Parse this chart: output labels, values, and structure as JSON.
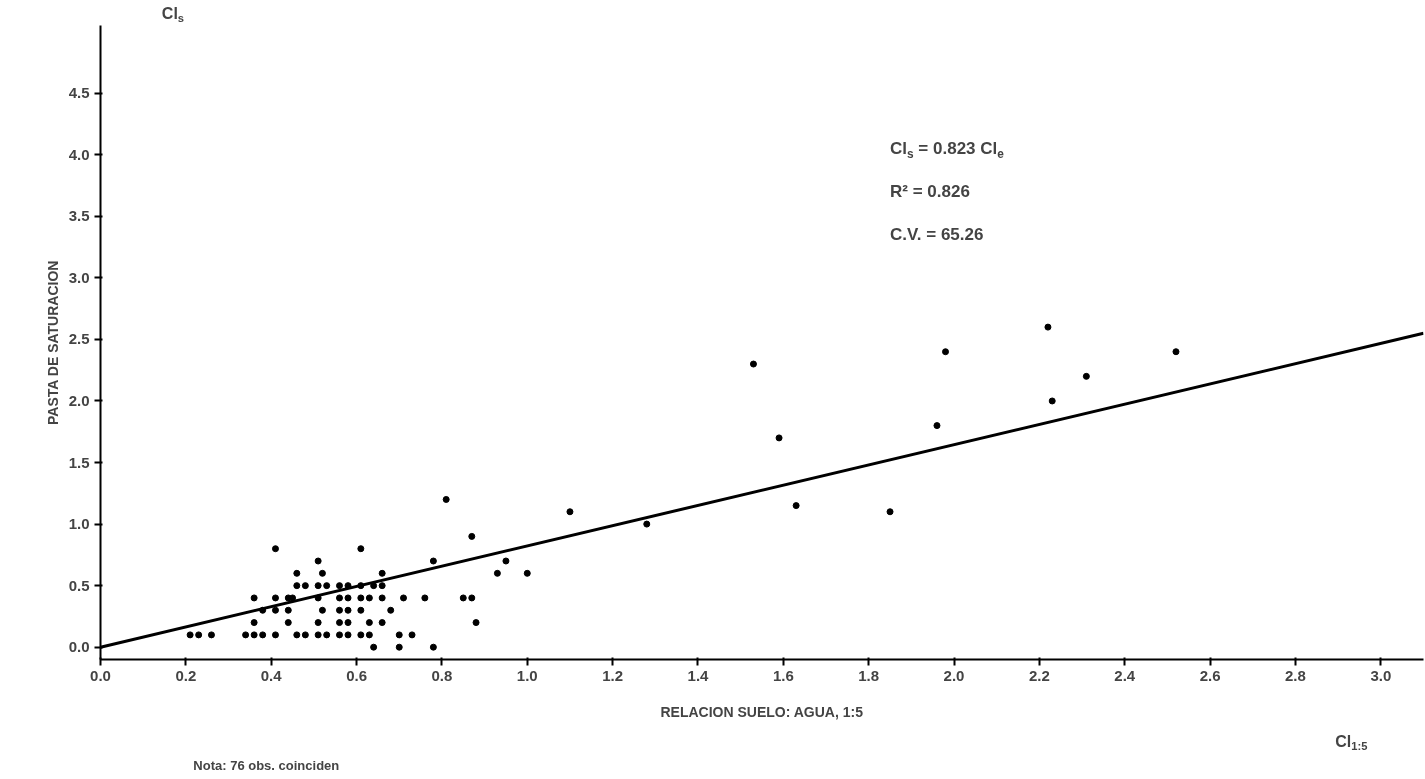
{
  "chart_data": {
    "type": "scatter",
    "xlabel": "RELACION SUELO: AGUA, 1:5",
    "ylabel": "PASTA DE SATURACION",
    "annotations": [
      "Cl$_{s}$",
      "Cl$_{s}$ = 0.823 Cl$_{e}$",
      "R² = 0.826",
      "C.V. = 65.26",
      "Cl$_{1:5}$",
      "Nota: 76 obs. coinciden"
    ],
    "xlim": [
      0,
      3.1
    ],
    "ylim": [
      -0.1,
      5.05
    ],
    "xticks": [
      {
        "value": 0,
        "label": "0.0"
      },
      0.2,
      0.4,
      0.6,
      0.8,
      {
        "value": 1,
        "label": "1.0"
      },
      1.2,
      1.4,
      1.6,
      1.8,
      {
        "value": 2,
        "label": "2.0"
      },
      2.2,
      2.4,
      2.6,
      2.8,
      {
        "value": 3,
        "label": "3.0"
      }
    ],
    "yticks": [
      {
        "value": 0,
        "label": "0.0"
      },
      0.5,
      {
        "value": 1,
        "label": "1.0"
      },
      1.5,
      {
        "value": 2,
        "label": "2.0"
      },
      2.5,
      {
        "value": 3,
        "label": "3.0"
      },
      3.5,
      {
        "value": 4,
        "label": "4.0"
      },
      4.5
    ],
    "grid": false,
    "marker": "circle",
    "series": [
      {
        "color": "#000000",
        "x": [
          0.87,
          0.41,
          0.61,
          0.51,
          0.78,
          0.95,
          0.46,
          0.52,
          0.66,
          0.93,
          1.0,
          0.46,
          0.48,
          0.51,
          0.53,
          0.56,
          0.58,
          0.61,
          0.64,
          0.66,
          0.36,
          0.41,
          0.44,
          0.45,
          0.51,
          0.56,
          0.58,
          0.61,
          0.63,
          0.66,
          0.71,
          0.76,
          0.85,
          0.87,
          0.38,
          0.41,
          0.44,
          0.52,
          0.56,
          0.58,
          0.61,
          0.68,
          0.36,
          0.44,
          0.51,
          0.56,
          0.58,
          0.63,
          0.66,
          0.88,
          0.21,
          0.23,
          0.26,
          0.34,
          0.36,
          0.38,
          0.41,
          0.46,
          0.48,
          0.51,
          0.53,
          0.56,
          0.58,
          0.61,
          0.63,
          0.7,
          0.73,
          0.64,
          0.7,
          0.78,
          0.81,
          1.1,
          1.28,
          1.53,
          1.59,
          1.63,
          1.85,
          1.96,
          1.98,
          2.22,
          2.23,
          2.31,
          2.52
        ],
        "values": [
          0.9,
          0.8,
          0.8,
          0.7,
          0.7,
          0.7,
          0.6,
          0.6,
          0.6,
          0.6,
          0.6,
          0.5,
          0.5,
          0.5,
          0.5,
          0.5,
          0.5,
          0.5,
          0.5,
          0.5,
          0.4,
          0.4,
          0.4,
          0.4,
          0.4,
          0.4,
          0.4,
          0.4,
          0.4,
          0.4,
          0.4,
          0.4,
          0.4,
          0.4,
          0.3,
          0.3,
          0.3,
          0.3,
          0.3,
          0.3,
          0.3,
          0.3,
          0.2,
          0.2,
          0.2,
          0.2,
          0.2,
          0.2,
          0.2,
          0.2,
          0.1,
          0.1,
          0.1,
          0.1,
          0.1,
          0.1,
          0.1,
          0.1,
          0.1,
          0.1,
          0.1,
          0.1,
          0.1,
          0.1,
          0.1,
          0.1,
          0.1,
          0.0,
          0.0,
          0.0,
          1.2,
          1.1,
          1.0,
          2.3,
          1.7,
          1.15,
          1.1,
          1.8,
          2.4,
          2.6,
          2.0,
          2.2,
          2.4
        ]
      },
      {
        "type": "line",
        "color": "#000000",
        "line_style": "solid",
        "marker": "none",
        "x": [
          0,
          3.1
        ],
        "values": [
          0,
          2.55
        ]
      }
    ]
  }
}
